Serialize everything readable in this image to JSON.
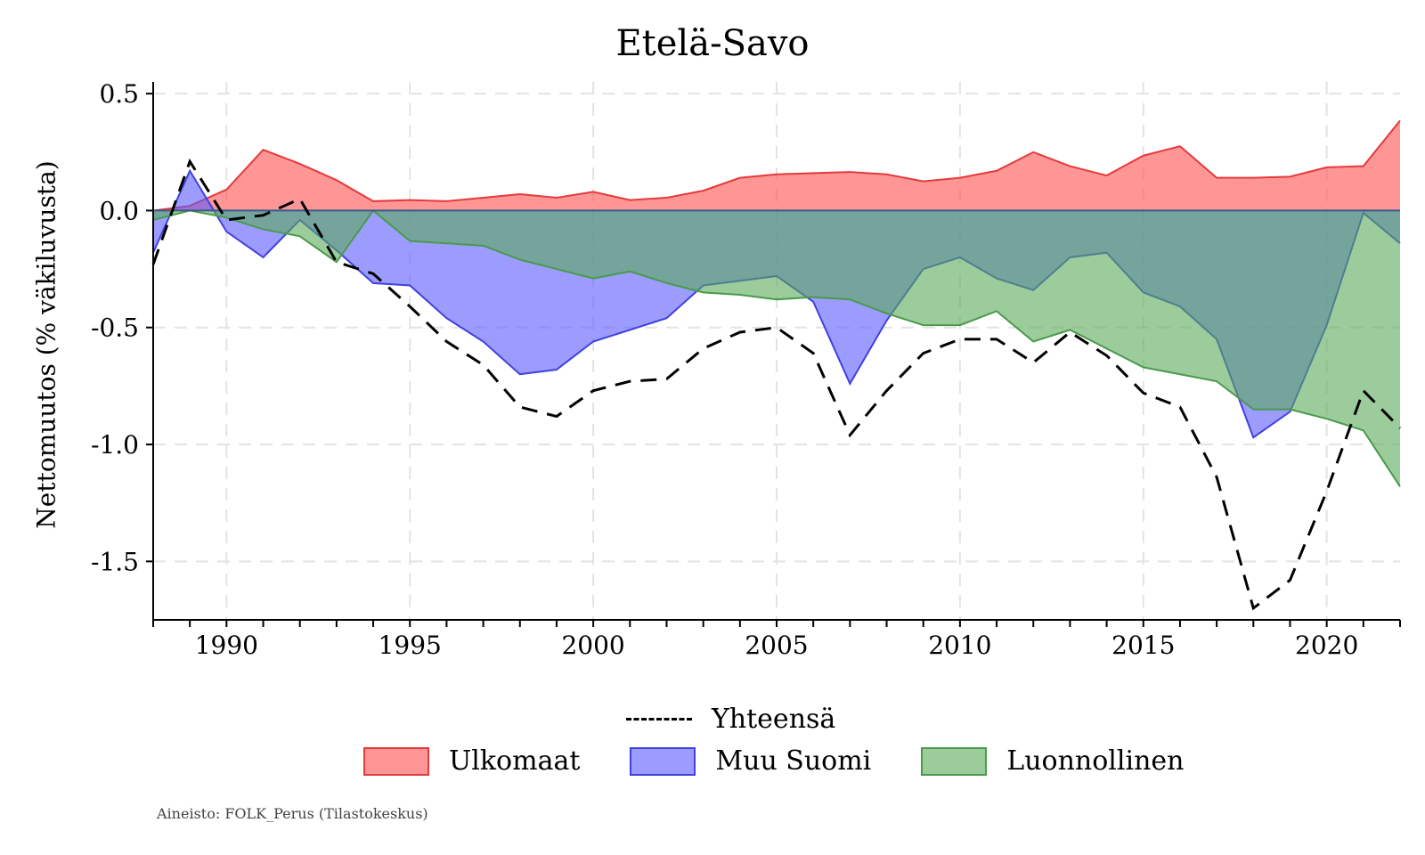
{
  "chart_data": {
    "type": "area",
    "title": "Etelä-Savo",
    "xlabel": "",
    "ylabel": "Nettomuutos (% väkiluvusta)",
    "xlim": [
      1988,
      2022
    ],
    "ylim": [
      -1.75,
      0.55
    ],
    "yticks": [
      0.5,
      0.0,
      -0.5,
      -1.0,
      -1.5
    ],
    "ytick_labels": [
      "0.5",
      "0.0",
      "-0.5",
      "-1.0",
      "-1.5"
    ],
    "xticks": [
      1990,
      1995,
      2000,
      2005,
      2010,
      2015,
      2020
    ],
    "xtick_labels": [
      "1990",
      "1995",
      "2000",
      "2005",
      "2010",
      "2015",
      "2020"
    ],
    "grid": true,
    "x": [
      1988,
      1989,
      1990,
      1991,
      1992,
      1993,
      1994,
      1995,
      1996,
      1997,
      1998,
      1999,
      2000,
      2001,
      2002,
      2003,
      2004,
      2005,
      2006,
      2007,
      2008,
      2009,
      2010,
      2011,
      2012,
      2013,
      2014,
      2015,
      2016,
      2017,
      2018,
      2019,
      2020,
      2021,
      2022
    ],
    "series": [
      {
        "name": "Ulkomaat",
        "kind": "area",
        "color": "#ff6a6a",
        "values": [
          0.0,
          0.02,
          0.09,
          0.26,
          0.2,
          0.13,
          0.04,
          0.045,
          0.04,
          0.055,
          0.07,
          0.055,
          0.08,
          0.045,
          0.055,
          0.085,
          0.14,
          0.155,
          0.16,
          0.165,
          0.155,
          0.125,
          0.14,
          0.17,
          0.25,
          0.19,
          0.15,
          0.235,
          0.275,
          0.14,
          0.14,
          0.145,
          0.185,
          0.19,
          0.385
        ]
      },
      {
        "name": "Muu Suomi",
        "kind": "area",
        "color": "#6a6aff",
        "values": [
          -0.18,
          0.17,
          -0.09,
          -0.2,
          -0.04,
          -0.17,
          -0.31,
          -0.32,
          -0.46,
          -0.56,
          -0.7,
          -0.68,
          -0.56,
          -0.51,
          -0.46,
          -0.32,
          -0.3,
          -0.28,
          -0.39,
          -0.74,
          -0.47,
          -0.25,
          -0.2,
          -0.29,
          -0.34,
          -0.2,
          -0.18,
          -0.35,
          -0.41,
          -0.55,
          -0.97,
          -0.86,
          -0.49,
          -0.01,
          -0.14
        ]
      },
      {
        "name": "Luonnollinen",
        "kind": "area",
        "color": "#6ab46a",
        "values": [
          -0.04,
          0.0,
          -0.03,
          -0.08,
          -0.11,
          -0.22,
          0.0,
          -0.13,
          -0.14,
          -0.15,
          -0.21,
          -0.25,
          -0.29,
          -0.26,
          -0.31,
          -0.35,
          -0.36,
          -0.38,
          -0.37,
          -0.38,
          -0.44,
          -0.49,
          -0.49,
          -0.43,
          -0.56,
          -0.51,
          -0.59,
          -0.67,
          -0.7,
          -0.73,
          -0.85,
          -0.85,
          -0.89,
          -0.94,
          -1.18
        ]
      },
      {
        "name": "Yhteensä",
        "kind": "line",
        "color": "#000000",
        "values": [
          -0.23,
          0.21,
          -0.04,
          -0.02,
          0.05,
          -0.22,
          -0.27,
          -0.41,
          -0.56,
          -0.66,
          -0.84,
          -0.88,
          -0.77,
          -0.73,
          -0.72,
          -0.59,
          -0.52,
          -0.5,
          -0.61,
          -0.96,
          -0.77,
          -0.61,
          -0.55,
          -0.55,
          -0.65,
          -0.52,
          -0.62,
          -0.78,
          -0.84,
          -1.14,
          -1.7,
          -1.58,
          -1.2,
          -0.77,
          -0.93
        ]
      }
    ]
  },
  "legend": {
    "total_label": "Yhteensä",
    "labels": [
      "Ulkomaat",
      "Muu Suomi",
      "Luonnollinen"
    ]
  },
  "source_note": "Aineisto: FOLK_Perus (Tilastokeskus)"
}
